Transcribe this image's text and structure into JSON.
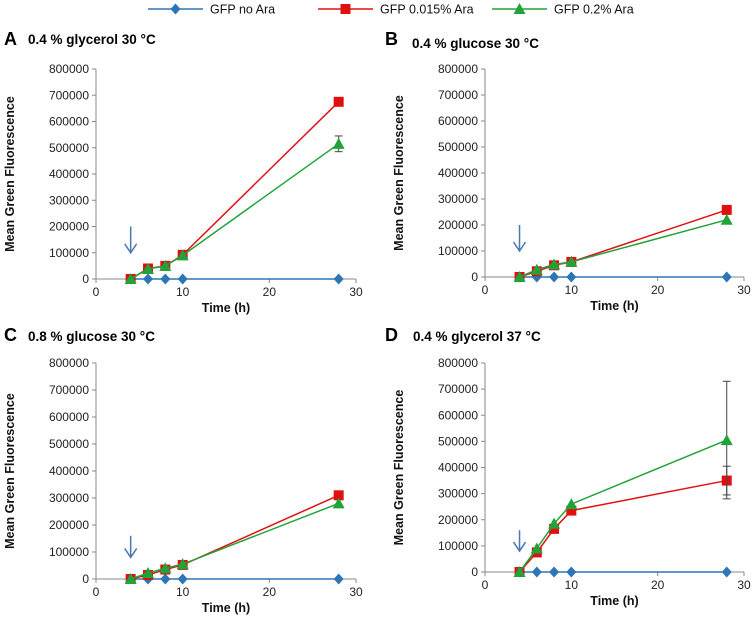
{
  "figure": {
    "legend": [
      {
        "label": "GFP no Ara",
        "color": "#2e75b6",
        "marker": "diamond"
      },
      {
        "label": "GFP 0.015% Ara",
        "color": "#e01010",
        "marker": "square"
      },
      {
        "label": "GFP 0.2% Ara",
        "color": "#22a33a",
        "marker": "triangle"
      }
    ]
  },
  "chart_data": [
    {
      "panel": "A",
      "title": "0.4 % glycerol 30 °C",
      "type": "line",
      "xlabel": "Time (h)",
      "ylabel": "Mean Green Fluorescence",
      "xlim": [
        0,
        30
      ],
      "ylim": [
        0,
        800000
      ],
      "xticks": [
        0,
        10,
        20,
        30
      ],
      "yticks": [
        0,
        100000,
        200000,
        300000,
        400000,
        500000,
        600000,
        700000,
        800000
      ],
      "arrow_at": {
        "x": 4,
        "y_from": 200000,
        "y_to": 100000
      },
      "series": [
        {
          "name": "GFP no Ara",
          "x": [
            4,
            6,
            8,
            10,
            28
          ],
          "values": [
            0,
            0,
            0,
            0,
            0
          ]
        },
        {
          "name": "GFP 0.015% Ara",
          "x": [
            4,
            6,
            8,
            10,
            28
          ],
          "values": [
            0,
            40000,
            50000,
            92000,
            675000
          ],
          "errors": [
            0,
            0,
            0,
            0,
            15000
          ]
        },
        {
          "name": "GFP 0.2% Ara",
          "x": [
            4,
            6,
            8,
            10,
            28
          ],
          "values": [
            0,
            38000,
            50000,
            90000,
            515000
          ],
          "errors": [
            0,
            0,
            0,
            0,
            30000
          ]
        }
      ]
    },
    {
      "panel": "B",
      "title": "0.4 % glucose 30 °C",
      "type": "line",
      "xlabel": "Time (h)",
      "ylabel": "Mean Green Fluorescence",
      "xlim": [
        0,
        30
      ],
      "ylim": [
        0,
        800000
      ],
      "xticks": [
        0,
        10,
        20,
        30
      ],
      "yticks": [
        0,
        100000,
        200000,
        300000,
        400000,
        500000,
        600000,
        700000,
        800000
      ],
      "arrow_at": {
        "x": 4,
        "y_from": 200000,
        "y_to": 100000
      },
      "series": [
        {
          "name": "GFP no Ara",
          "x": [
            4,
            6,
            8,
            10,
            28
          ],
          "values": [
            0,
            0,
            0,
            0,
            0
          ]
        },
        {
          "name": "GFP 0.015% Ara",
          "x": [
            4,
            6,
            8,
            10,
            28
          ],
          "values": [
            0,
            22000,
            45000,
            58000,
            258000
          ]
        },
        {
          "name": "GFP 0.2% Ara",
          "x": [
            4,
            6,
            8,
            10,
            28
          ],
          "values": [
            0,
            28000,
            48000,
            58000,
            220000
          ]
        }
      ]
    },
    {
      "panel": "C",
      "title": "0.8 % glucose 30 °C",
      "type": "line",
      "xlabel": "Time (h)",
      "ylabel": "Mean Green Fluorescence",
      "xlim": [
        0,
        30
      ],
      "ylim": [
        0,
        800000
      ],
      "xticks": [
        0,
        10,
        20,
        30
      ],
      "yticks": [
        0,
        100000,
        200000,
        300000,
        400000,
        500000,
        600000,
        700000,
        800000
      ],
      "arrow_at": {
        "x": 4,
        "y_from": 160000,
        "y_to": 80000
      },
      "series": [
        {
          "name": "GFP no Ara",
          "x": [
            4,
            6,
            8,
            10,
            28
          ],
          "values": [
            0,
            0,
            0,
            0,
            0
          ]
        },
        {
          "name": "GFP 0.015% Ara",
          "x": [
            4,
            6,
            8,
            10,
            28
          ],
          "values": [
            0,
            15000,
            35000,
            52000,
            310000
          ]
        },
        {
          "name": "GFP 0.2% Ara",
          "x": [
            4,
            6,
            8,
            10,
            28
          ],
          "values": [
            0,
            22000,
            40000,
            55000,
            280000
          ]
        }
      ]
    },
    {
      "panel": "D",
      "title": "0.4 % glycerol 37 °C",
      "type": "line",
      "xlabel": "Time (h)",
      "ylabel": "Mean Green Fluorescence",
      "xlim": [
        0,
        30
      ],
      "ylim": [
        0,
        800000
      ],
      "xticks": [
        0,
        10,
        20,
        30
      ],
      "yticks": [
        0,
        100000,
        200000,
        300000,
        400000,
        500000,
        600000,
        700000,
        800000
      ],
      "arrow_at": {
        "x": 4,
        "y_from": 160000,
        "y_to": 80000
      },
      "series": [
        {
          "name": "GFP no Ara",
          "x": [
            4,
            6,
            8,
            10,
            28
          ],
          "values": [
            0,
            0,
            0,
            0,
            0
          ]
        },
        {
          "name": "GFP 0.015% Ara",
          "x": [
            4,
            6,
            8,
            10,
            28
          ],
          "values": [
            0,
            75000,
            165000,
            235000,
            350000
          ],
          "errors": [
            0,
            0,
            0,
            0,
            55000
          ]
        },
        {
          "name": "GFP 0.2% Ara",
          "x": [
            4,
            6,
            8,
            10,
            28
          ],
          "values": [
            0,
            90000,
            185000,
            260000,
            505000
          ],
          "errors": [
            0,
            0,
            0,
            0,
            225000
          ]
        }
      ]
    }
  ]
}
